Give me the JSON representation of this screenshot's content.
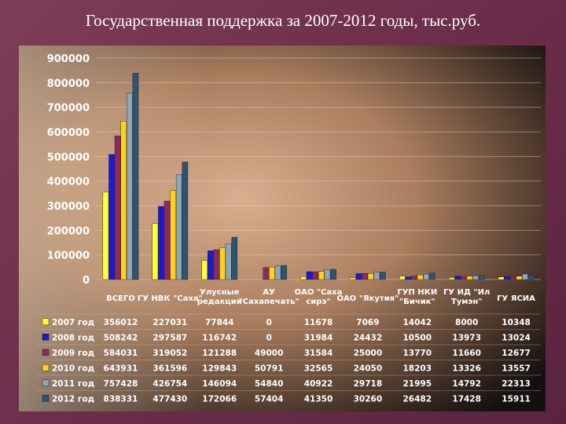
{
  "page": {
    "title": "Государственная поддержка за 2007-2012 годы, тыс.руб."
  },
  "chart_data": {
    "type": "bar",
    "title": "",
    "xlabel": "",
    "ylabel": "",
    "ylim": [
      0,
      900000
    ],
    "yticks": [
      0,
      100000,
      200000,
      300000,
      400000,
      500000,
      600000,
      700000,
      800000,
      900000
    ],
    "ytick_labels": [
      "0",
      "100000",
      "200000",
      "300000",
      "400000",
      "500000",
      "600000",
      "700000",
      "800000",
      "900000"
    ],
    "grid": true,
    "legend": "data-table-below",
    "categories": [
      [
        "ВСЕГО"
      ],
      [
        "ГУ НВК \"Саха\""
      ],
      [
        "Улусные",
        "редакции"
      ],
      [
        "АУ",
        "\"Сахапечать\""
      ],
      [
        "ОАО \"Саха",
        "сирэ\""
      ],
      [
        "ОАО \"Якутия\""
      ],
      [
        "ГУП НКИ",
        "\"Бичик\""
      ],
      [
        "ГУ ИД \"Ил",
        "Тумэн\""
      ],
      [
        "ГУ ЯСИА"
      ]
    ],
    "series": [
      {
        "name": "2007 год",
        "color": "#ffff33",
        "values": [
          356012,
          227031,
          77844,
          0,
          11678,
          7069,
          14042,
          8000,
          10348
        ]
      },
      {
        "name": "2008 год",
        "color": "#1a1ad0",
        "values": [
          508242,
          297587,
          116742,
          0,
          31984,
          24432,
          10500,
          13973,
          13024
        ]
      },
      {
        "name": "2009 год",
        "color": "#8a2a62",
        "values": [
          584031,
          319052,
          121288,
          49000,
          31584,
          25000,
          13770,
          11660,
          12677
        ]
      },
      {
        "name": "2010 год",
        "color": "#ffd21a",
        "values": [
          643931,
          361596,
          129843,
          50791,
          32565,
          24050,
          18203,
          13326,
          13557
        ]
      },
      {
        "name": "2011 год",
        "color": "#8fa7b5",
        "values": [
          757428,
          426754,
          146094,
          54840,
          40922,
          29718,
          21995,
          14792,
          22313
        ]
      },
      {
        "name": "2012 год",
        "color": "#2f5470",
        "values": [
          838331,
          477430,
          172066,
          57404,
          41350,
          30260,
          26482,
          17428,
          15911
        ]
      }
    ]
  }
}
